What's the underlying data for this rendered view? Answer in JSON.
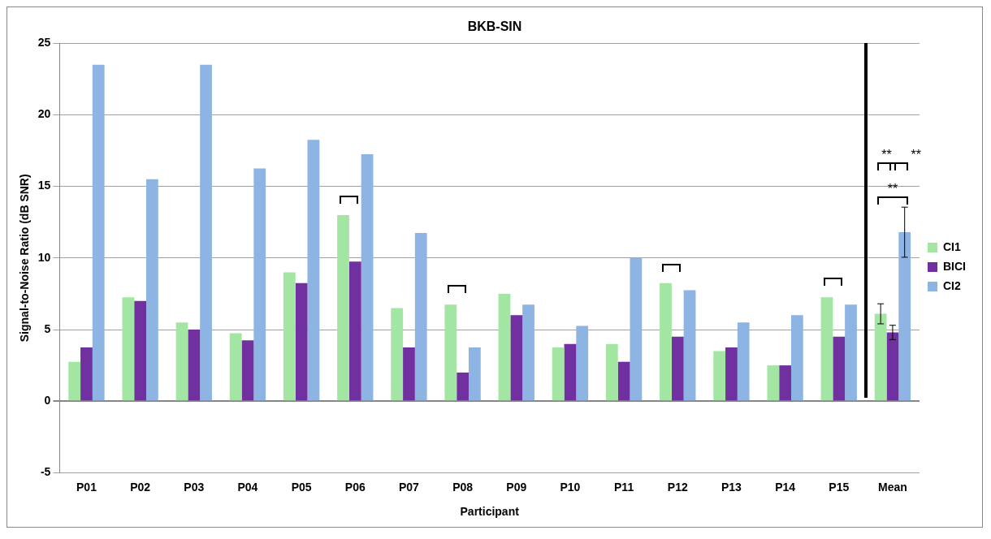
{
  "chart_data": {
    "type": "bar",
    "title": "BKB-SIN",
    "xlabel": "Participant",
    "ylabel": "Signal-to-Noise Ratio (dB SNR)",
    "categories": [
      "P01",
      "P02",
      "P03",
      "P04",
      "P05",
      "P06",
      "P07",
      "P08",
      "P09",
      "P10",
      "P11",
      "P12",
      "P13",
      "P14",
      "P15",
      "Mean"
    ],
    "series": [
      {
        "name": "CI1",
        "color": "#a3e6a3",
        "values": [
          2.75,
          7.25,
          5.5,
          4.75,
          9.0,
          13.0,
          6.5,
          6.75,
          7.5,
          3.75,
          4.0,
          8.25,
          3.5,
          2.5,
          7.25,
          6.1
        ],
        "errors": [
          null,
          null,
          null,
          null,
          null,
          null,
          null,
          null,
          null,
          null,
          null,
          null,
          null,
          null,
          null,
          0.7
        ]
      },
      {
        "name": "BICI",
        "color": "#7030a0",
        "values": [
          3.75,
          7.0,
          5.0,
          4.25,
          8.25,
          9.75,
          3.75,
          2.0,
          6.0,
          4.0,
          2.75,
          4.5,
          3.75,
          2.5,
          4.5,
          4.8
        ],
        "errors": [
          null,
          null,
          null,
          null,
          null,
          null,
          null,
          null,
          null,
          null,
          null,
          null,
          null,
          null,
          null,
          0.5
        ]
      },
      {
        "name": "CI2",
        "color": "#8eb4e3",
        "values": [
          23.5,
          15.5,
          23.5,
          16.25,
          18.25,
          17.25,
          11.75,
          3.75,
          6.75,
          5.25,
          10.0,
          7.75,
          5.5,
          6.0,
          6.75,
          11.8
        ],
        "errors": [
          null,
          null,
          null,
          null,
          null,
          null,
          null,
          null,
          null,
          null,
          null,
          null,
          null,
          null,
          null,
          1.75
        ]
      }
    ],
    "ylim": [
      -5,
      25
    ],
    "yticks": [
      -5,
      0,
      5,
      10,
      15,
      20,
      25
    ],
    "grid": "y",
    "legend": "right",
    "annotations": [
      "**",
      "**",
      "**"
    ]
  }
}
